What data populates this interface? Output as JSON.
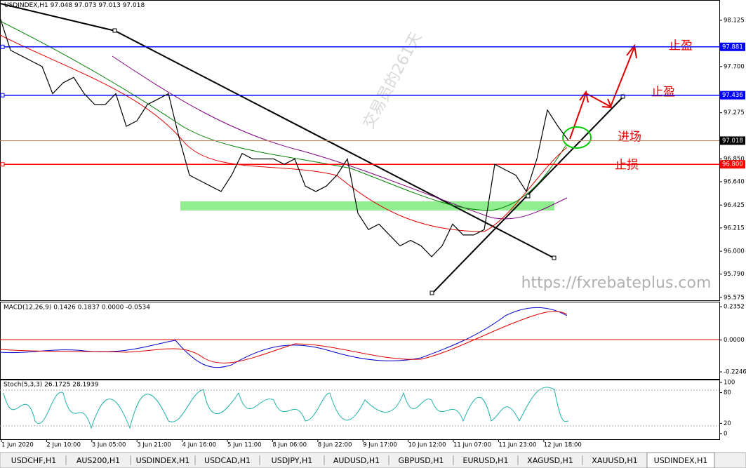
{
  "header": {
    "symbol": "USDINDEX,H1",
    "ohlc": "97.048 97.073 97.013 97.018"
  },
  "watermark": "交易员的261天",
  "url": "https://fxrebateplus.com",
  "annotations": [
    "止盈",
    "止盈",
    "进场",
    "止损"
  ],
  "price_chart": {
    "type": "line",
    "color": "#000000",
    "ylim": [
      95.549,
      98.312
    ],
    "yticks": [
      98.125,
      {
        "value": 97.7,
        "label": "97.700"
      },
      97.275,
      {
        "value": 96.85,
        "label": "96.850"
      },
      {
        "value": 96.64,
        "label": "96.640"
      },
      96.425,
      96.215,
      {
        "value": 96.0,
        "label": "96.000"
      },
      {
        "value": 95.79,
        "label": "95.790"
      },
      95.575
    ],
    "levels": [
      {
        "value": 97.881,
        "label": "97.881",
        "color": "#0000ff"
      },
      {
        "value": 97.436,
        "label": "97.436",
        "color": "#0000ff"
      },
      {
        "value": 97.018,
        "label": "97.018",
        "color": "#000000"
      },
      {
        "value": 96.8,
        "label": "96.800",
        "color": "#ff0000"
      }
    ],
    "values": [
      98.15,
      97.85,
      97.8,
      97.75,
      97.7,
      97.45,
      97.55,
      97.6,
      97.45,
      97.35,
      97.35,
      97.45,
      97.15,
      97.2,
      97.35,
      97.4,
      97.45,
      97.05,
      96.7,
      96.65,
      96.6,
      96.55,
      96.7,
      96.9,
      96.85,
      96.85,
      96.85,
      96.8,
      96.85,
      96.6,
      96.55,
      96.6,
      96.7,
      96.85,
      96.35,
      96.2,
      96.25,
      96.15,
      96.05,
      96.1,
      96.05,
      95.95,
      96.05,
      96.25,
      96.15,
      96.15,
      96.2,
      96.8,
      96.75,
      96.7,
      96.55,
      96.85,
      97.3,
      97.15,
      97.02
    ]
  },
  "time_labels": [
    "1 Jun 2020",
    "2 Jun 10:00",
    "3 Jun 05:00",
    "3 Jun 21:00",
    "4 Jun 16:00",
    "5 Jun 11:00",
    "8 Jun 06:00",
    "8 Jun 22:00",
    "9 Jun 17:00",
    "10 Jun 12:00",
    "11 Jun 07:00",
    "11 Jun 23:00",
    "12 Jun 18:00"
  ],
  "macd": {
    "title": "MACD(12,26,9) 0.1426 0.1837 0.0000 -0.0534",
    "ylim": [
      -0.274,
      0.27
    ],
    "yticks": [
      0.2352,
      {
        "value": 0,
        "label": "0.0000"
      },
      -0.2246
    ]
  },
  "stoch": {
    "title": "Stoch(5,3,3) 26.1725 28.1939",
    "ylim": [
      -11,
      105.5
    ],
    "yticks": [
      100,
      80,
      20,
      0
    ]
  },
  "tabs": [
    "USDCHF,H1",
    "AUS200,H1",
    "USDINDEX,H1",
    "USDCAD,H1",
    "USDJPY,H1",
    "AUDUSD,H1",
    "GBPUSD,H1",
    "EURUSD,H1",
    "XAGUSD,H1",
    "XAUUSD,H1",
    "USDINDEX,H1"
  ],
  "active_tab": 10
}
